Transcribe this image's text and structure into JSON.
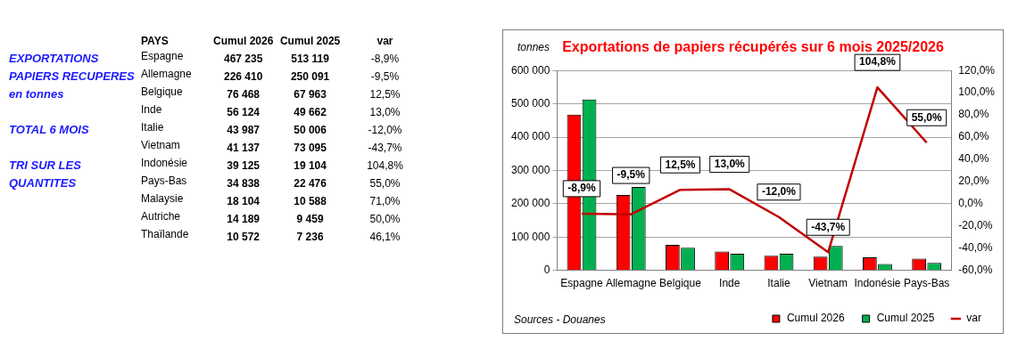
{
  "chart_data": [
    {
      "type": "other",
      "xlabel": "PAYS",
      "annotations": [
        "EXPORTATIONS",
        "PAPIERS RECUPERES",
        "en tonnes",
        "TOTAL 6 MOIS",
        "TRI SUR LES",
        "QUANTITES"
      ],
      "categories": [
        "Espagne",
        "Allemagne",
        "Belgique",
        "Inde",
        "Italie",
        "Vietnam",
        "Indonésie",
        "Pays-Bas",
        "Malaysie",
        "Autriche",
        "Thaïlande"
      ],
      "series": [
        {
          "name": "Cumul 2026",
          "values": [
            467235,
            226410,
            76468,
            56124,
            43987,
            41137,
            39125,
            34838,
            18104,
            14189,
            10572
          ],
          "value_labels": [
            "467 235",
            "226 410",
            "76 468",
            "56 124",
            "43 987",
            "41 137",
            "39 125",
            "34 838",
            "18 104",
            "14 189",
            "10 572"
          ]
        },
        {
          "name": "Cumul 2025",
          "values": [
            513119,
            250091,
            67963,
            49662,
            50006,
            73095,
            19104,
            22476,
            10588,
            9459,
            7236
          ],
          "value_labels": [
            "513 119",
            "250 091",
            "67 963",
            "49 662",
            "50 006",
            "73 095",
            "19 104",
            "22 476",
            "10 588",
            "9 459",
            "7 236"
          ]
        },
        {
          "name": "var",
          "values": [
            -8.9,
            -9.5,
            12.5,
            13.0,
            -12.0,
            -43.7,
            104.8,
            55.0,
            71.0,
            50.0,
            46.1
          ],
          "value_labels": [
            "-8,9%",
            "-9,5%",
            "12,5%",
            "13,0%",
            "-12,0%",
            "-43,7%",
            "104,8%",
            "55,0%",
            "71,0%",
            "50,0%",
            "46,1%"
          ]
        }
      ]
    },
    {
      "type": "bar",
      "title": "Exportations de papiers récupérés sur 6 mois 2025/2026",
      "ylabel": "tonnes",
      "annotations": [
        "Sources - Douanes"
      ],
      "categories": [
        "Espagne",
        "Allemagne",
        "Belgique",
        "Inde",
        "Italie",
        "Vietnam",
        "Indonésie",
        "Pays-Bas"
      ],
      "series": [
        {
          "name": "Cumul 2026",
          "color": "#ff0000",
          "values": [
            467235,
            226410,
            76468,
            56124,
            43987,
            41137,
            39125,
            34838
          ]
        },
        {
          "name": "Cumul 2025",
          "color": "#00b050",
          "values": [
            513119,
            250091,
            67963,
            49662,
            50006,
            73095,
            19104,
            22476
          ]
        },
        {
          "name": "var",
          "type": "line",
          "axis": "y2",
          "color": "#c00000",
          "values": [
            -8.9,
            -9.5,
            12.5,
            13.0,
            -12.0,
            -43.7,
            104.8,
            55.0
          ],
          "value_labels": [
            "-8,9%",
            "-9,5%",
            "12,5%",
            "13,0%",
            "-12,0%",
            "-43,7%",
            "104,8%",
            "55,0%"
          ]
        }
      ],
      "ylim": [
        0,
        600000
      ],
      "yticks": [
        {
          "value": 0,
          "label": "0"
        },
        {
          "value": 100000,
          "label": "100 000"
        },
        {
          "value": 200000,
          "label": "200 000"
        },
        {
          "value": 300000,
          "label": "300 000"
        },
        {
          "value": 400000,
          "label": "400 000"
        },
        {
          "value": 500000,
          "label": "500 000"
        },
        {
          "value": 600000,
          "label": "600 000"
        }
      ],
      "y2lim": [
        -60,
        120
      ],
      "y2ticks": [
        {
          "value": -60,
          "label": "-60,0%"
        },
        {
          "value": -40,
          "label": "-40,0%"
        },
        {
          "value": -20,
          "label": "-20,0%"
        },
        {
          "value": 0,
          "label": "0,0%"
        },
        {
          "value": 20,
          "label": "20,0%"
        },
        {
          "value": 40,
          "label": "40,0%"
        },
        {
          "value": 60,
          "label": "60,0%"
        },
        {
          "value": 80,
          "label": "80,0%"
        },
        {
          "value": 100,
          "label": "100,0%"
        },
        {
          "value": 120,
          "label": "120,0%"
        }
      ],
      "grid": "y",
      "legend": "bottom right",
      "marker": "none"
    }
  ]
}
